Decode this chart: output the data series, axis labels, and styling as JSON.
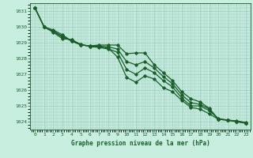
{
  "title": "Graphe pression niveau de la mer (hPa)",
  "xlabel_hours": [
    0,
    1,
    2,
    3,
    4,
    5,
    6,
    7,
    8,
    9,
    10,
    11,
    12,
    13,
    14,
    15,
    16,
    17,
    18,
    19,
    20,
    21,
    22,
    23
  ],
  "ylim": [
    1023.5,
    1031.5
  ],
  "yticks": [
    1024,
    1025,
    1026,
    1027,
    1028,
    1029,
    1030,
    1031
  ],
  "background_color": "#c8eee0",
  "grid_color": "#99ccbb",
  "line_color": "#1a5e2a",
  "series": [
    [
      1031.2,
      1030.0,
      1029.8,
      1029.5,
      1029.1,
      1028.85,
      1028.8,
      1028.85,
      1028.85,
      1028.85,
      1028.3,
      1028.35,
      1028.35,
      1027.6,
      1027.1,
      1026.6,
      1025.9,
      1025.45,
      1025.25,
      1024.85,
      1024.15,
      1024.1,
      1024.05,
      1023.95
    ],
    [
      1031.2,
      1030.0,
      1029.7,
      1029.35,
      1029.15,
      1028.9,
      1028.75,
      1028.7,
      1028.6,
      1028.4,
      1027.3,
      1027.0,
      1027.4,
      1027.1,
      1026.6,
      1026.2,
      1025.5,
      1025.0,
      1025.0,
      1024.7,
      1024.2,
      1024.1,
      1024.0,
      1023.9
    ],
    [
      1031.2,
      1030.0,
      1029.65,
      1029.25,
      1029.2,
      1028.88,
      1028.78,
      1028.75,
      1028.65,
      1028.1,
      1026.8,
      1026.5,
      1026.9,
      1026.7,
      1026.15,
      1025.9,
      1025.35,
      1024.9,
      1024.8,
      1024.5,
      1024.15,
      1024.1,
      1024.0,
      1023.9
    ],
    [
      1031.2,
      1030.0,
      1029.75,
      1029.4,
      1029.1,
      1028.87,
      1028.77,
      1028.78,
      1028.73,
      1028.6,
      1027.8,
      1027.6,
      1027.8,
      1027.4,
      1026.85,
      1026.4,
      1025.7,
      1025.2,
      1025.1,
      1024.8,
      1024.15,
      1024.1,
      1024.02,
      1023.92
    ]
  ]
}
